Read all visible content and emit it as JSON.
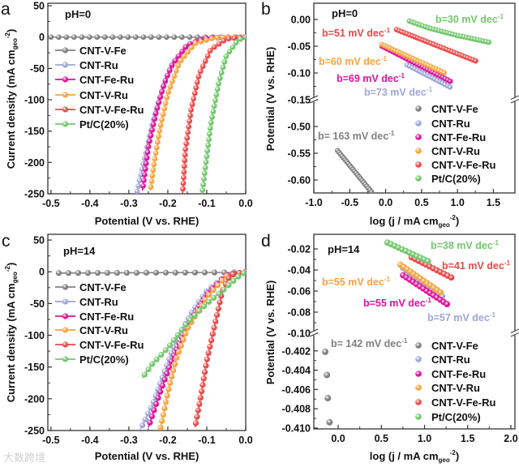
{
  "watermark": "大数跨境",
  "colors": {
    "CNT-V-Fe": "#808080",
    "CNT-Ru": "#9ea6d8",
    "CNT-Fe-Ru": "#e01398",
    "CNT-V-Ru": "#f9a33d",
    "CNT-V-Fe-Ru": "#ec4848",
    "Pt/C(20%)": "#72c76c"
  },
  "chart_data": [
    {
      "panel": "a",
      "type": "line",
      "title": "pH=0",
      "xlabel": {
        "main": "Potential  (V vs. RHE)"
      },
      "ylabel": {
        "main": "Current density (mA cm",
        "sub": "geo",
        "sup": "-2",
        "end": ")"
      },
      "xlim": [
        -0.508,
        0
      ],
      "ylim_segments": [
        [
          -250,
          54
        ]
      ],
      "xticks": [
        -0.5,
        -0.4,
        -0.3,
        -0.2,
        -0.1,
        0
      ],
      "xtick_labels": [
        "-0.5",
        "-0.4",
        "-0.3",
        "-0.2",
        "-0.1",
        "0.0"
      ],
      "yticks": [
        50,
        0,
        -50,
        -100,
        -150,
        -200,
        -250
      ],
      "ytick_labels": [
        "50",
        "0",
        "-50",
        "-100",
        "-150",
        "-200",
        "-250"
      ],
      "legend": "left",
      "series": [
        {
          "name": "CNT-V-Fe",
          "points": [
            [
              -0.5,
              0
            ],
            [
              0,
              0
            ]
          ]
        },
        {
          "name": "CNT-Ru",
          "points": [
            [
              0,
              0
            ],
            [
              -0.1,
              -2
            ],
            [
              -0.15,
              -15
            ],
            [
              -0.18,
              -35
            ],
            [
              -0.2,
              -60
            ],
            [
              -0.22,
              -95
            ],
            [
              -0.24,
              -140
            ],
            [
              -0.26,
              -195
            ],
            [
              -0.28,
              -250
            ]
          ]
        },
        {
          "name": "CNT-Fe-Ru",
          "points": [
            [
              0,
              0
            ],
            [
              -0.1,
              -1
            ],
            [
              -0.15,
              -12
            ],
            [
              -0.19,
              -45
            ],
            [
              -0.21,
              -75
            ],
            [
              -0.23,
              -120
            ],
            [
              -0.25,
              -175
            ],
            [
              -0.265,
              -245
            ]
          ]
        },
        {
          "name": "CNT-V-Ru",
          "points": [
            [
              0,
              0
            ],
            [
              -0.08,
              -1
            ],
            [
              -0.13,
              -10
            ],
            [
              -0.17,
              -40
            ],
            [
              -0.2,
              -90
            ],
            [
              -0.22,
              -145
            ],
            [
              -0.235,
              -200
            ],
            [
              -0.245,
              -245
            ]
          ]
        },
        {
          "name": "CNT-V-Fe-Ru",
          "points": [
            [
              0,
              0
            ],
            [
              -0.05,
              -3
            ],
            [
              -0.09,
              -20
            ],
            [
              -0.12,
              -60
            ],
            [
              -0.14,
              -115
            ],
            [
              -0.155,
              -180
            ],
            [
              -0.162,
              -250
            ]
          ]
        },
        {
          "name": "Pt/C(20%)",
          "points": [
            [
              0,
              0
            ],
            [
              -0.02,
              -5
            ],
            [
              -0.05,
              -30
            ],
            [
              -0.07,
              -75
            ],
            [
              -0.09,
              -140
            ],
            [
              -0.1,
              -190
            ],
            [
              -0.112,
              -250
            ]
          ]
        }
      ],
      "annotations": []
    },
    {
      "panel": "b",
      "type": "scatter",
      "title": "pH=0",
      "xlabel": {
        "main": "log (j / mA cm",
        "sub": "geo",
        "sup": "-2",
        "end": ")"
      },
      "ylabel": {
        "main": "Potential  (V vs. RHE)"
      },
      "xlim": [
        -1.0,
        1.8
      ],
      "ylim_segments": [
        [
          -0.15,
          0.0303
        ],
        [
          -0.6242,
          -0.45
        ]
      ],
      "xticks": [
        -1.0,
        -0.5,
        0,
        0.5,
        1.0,
        1.5
      ],
      "xtick_labels": [
        "-1.0",
        "-0.5",
        "0.0",
        "0.5",
        "1.0",
        "1.5"
      ],
      "yticks": [
        0,
        -0.05,
        -0.1,
        -0.15,
        -0.5,
        -0.55,
        -0.6
      ],
      "ytick_labels": [
        "0.00",
        "-0.05",
        "-0.10",
        "-0.15",
        "-0.50",
        "-0.55",
        "-0.60"
      ],
      "legend": "right",
      "series": [
        {
          "name": "CNT-V-Fe",
          "points": [
            [
              -0.67,
              -0.545
            ],
            [
              -0.18,
              -0.625
            ]
          ]
        },
        {
          "name": "CNT-Ru",
          "points": [
            [
              0.3,
              -0.085
            ],
            [
              0.92,
              -0.128
            ]
          ]
        },
        {
          "name": "CNT-Fe-Ru",
          "points": [
            [
              -0.05,
              -0.05
            ],
            [
              0.92,
              -0.117
            ]
          ]
        },
        {
          "name": "CNT-V-Ru",
          "points": [
            [
              -0.05,
              -0.047
            ],
            [
              0.82,
              -0.1
            ]
          ]
        },
        {
          "name": "CNT-V-Fe-Ru",
          "points": [
            [
              0.15,
              -0.019
            ],
            [
              1.28,
              -0.079
            ]
          ]
        },
        {
          "name": "Pt/C(20%)",
          "points": [
            [
              0.33,
              -0.003
            ],
            [
              0.6,
              -0.016
            ],
            [
              1.0,
              -0.03
            ],
            [
              1.45,
              -0.043
            ]
          ]
        }
      ],
      "annotations": [
        {
          "series": "Pt/C(20%)",
          "text": "b=30 mV dec",
          "sup": "-1"
        },
        {
          "series": "CNT-V-Fe-Ru",
          "text": "b=51 mV dec",
          "sup": "-1"
        },
        {
          "series": "CNT-V-Ru",
          "text": "b=60 mV dec",
          "sup": "-1"
        },
        {
          "series": "CNT-Fe-Ru",
          "text": "b=69 mV dec",
          "sup": "-1"
        },
        {
          "series": "CNT-Ru",
          "text": "b=73 mV dec",
          "sup": "-1"
        },
        {
          "series": "CNT-V-Fe",
          "text": "b= 163 mV dec",
          "sup": "-1"
        }
      ]
    },
    {
      "panel": "c",
      "type": "line",
      "title": "pH=14",
      "xlabel": {
        "main": "Potential  (V vs. RHE)"
      },
      "ylabel": {
        "main": "Current density (mA cm",
        "sub": "geo",
        "sup": "-2",
        "end": ")"
      },
      "xlim": [
        -0.508,
        0
      ],
      "ylim_segments": [
        [
          -250,
          59
        ]
      ],
      "xticks": [
        -0.5,
        -0.4,
        -0.3,
        -0.2,
        -0.1,
        0
      ],
      "xtick_labels": [
        "-0.5",
        "-0.4",
        "-0.3",
        "-0.2",
        "-0.1",
        "0.0"
      ],
      "yticks": [
        50,
        0,
        -50,
        -100,
        -150,
        -200,
        -250
      ],
      "ytick_labels": [
        "50",
        "0",
        "-50",
        "-100",
        "-150",
        "-200",
        "-250"
      ],
      "legend": "left",
      "series": [
        {
          "name": "CNT-V-Fe",
          "points": [
            [
              -0.48,
              -2
            ],
            [
              -0.02,
              -1
            ],
            [
              -0.015,
              0
            ]
          ]
        },
        {
          "name": "CNT-Ru",
          "points": [
            [
              0,
              0
            ],
            [
              -0.05,
              -5
            ],
            [
              -0.1,
              -30
            ],
            [
              -0.14,
              -65
            ],
            [
              -0.18,
              -110
            ],
            [
              -0.21,
              -160
            ],
            [
              -0.24,
              -210
            ],
            [
              -0.27,
              -248
            ]
          ]
        },
        {
          "name": "CNT-Fe-Ru",
          "points": [
            [
              0,
              0
            ],
            [
              -0.05,
              -5
            ],
            [
              -0.1,
              -35
            ],
            [
              -0.15,
              -85
            ],
            [
              -0.19,
              -140
            ],
            [
              -0.22,
              -190
            ],
            [
              -0.25,
              -245
            ]
          ]
        },
        {
          "name": "CNT-V-Ru",
          "points": [
            [
              0,
              0
            ],
            [
              -0.05,
              -7
            ],
            [
              -0.1,
              -40
            ],
            [
              -0.15,
              -90
            ],
            [
              -0.18,
              -140
            ],
            [
              -0.2,
              -190
            ],
            [
              -0.22,
              -250
            ]
          ]
        },
        {
          "name": "CNT-V-Fe-Ru",
          "points": [
            [
              0,
              0
            ],
            [
              -0.04,
              -5
            ],
            [
              -0.06,
              -30
            ],
            [
              -0.08,
              -85
            ],
            [
              -0.1,
              -140
            ],
            [
              -0.115,
              -195
            ],
            [
              -0.13,
              -245
            ]
          ]
        },
        {
          "name": "Pt/C(20%)",
          "points": [
            [
              -0.005,
              -2
            ],
            [
              -0.02,
              -8
            ],
            [
              -0.06,
              -30
            ],
            [
              -0.1,
              -50
            ],
            [
              -0.15,
              -80
            ],
            [
              -0.2,
              -120
            ],
            [
              -0.24,
              -145
            ],
            [
              -0.265,
              -167
            ]
          ]
        }
      ],
      "annotations": []
    },
    {
      "panel": "d",
      "type": "scatter",
      "title": "pH=14",
      "xlabel": {
        "main": "log (j / mA cm",
        "sub": "geo",
        "sup": "-2",
        "end": ")"
      },
      "ylabel": {
        "main": "Potential  (V vs. RHE)"
      },
      "xlim": [
        -0.282,
        2.047
      ],
      "ylim_segments": [
        [
          -0.1,
          -0.00615
        ],
        [
          -0.41009,
          -0.40017
        ]
      ],
      "xticks": [
        0,
        0.5,
        1.0,
        1.5,
        2.0
      ],
      "xtick_labels": [
        "0.0",
        "0.5",
        "1.0",
        "1.5",
        "2.0"
      ],
      "yticks": [
        -0.02,
        -0.04,
        -0.06,
        -0.08,
        -0.1,
        -0.402,
        -0.404,
        -0.406,
        -0.408,
        -0.41
      ],
      "ytick_labels": [
        "-0.02",
        "-0.04",
        "-0.06",
        "-0.08",
        "-0.10",
        "-0.402",
        "-0.404",
        "-0.406",
        "-0.408",
        "-0.410"
      ],
      "legend": "right",
      "series": [
        {
          "name": "CNT-V-Fe",
          "discrete": true,
          "points": [
            [
              -0.15,
              -0.4021
            ],
            [
              -0.13,
              -0.4045
            ],
            [
              -0.12,
              -0.4069
            ],
            [
              -0.1,
              -0.4094
            ]
          ]
        },
        {
          "name": "CNT-Ru",
          "points": [
            [
              0.75,
              -0.038
            ],
            [
              1.22,
              -0.066
            ]
          ]
        },
        {
          "name": "CNT-Fe-Ru",
          "points": [
            [
              0.75,
              -0.045
            ],
            [
              1.27,
              -0.073
            ]
          ]
        },
        {
          "name": "CNT-V-Ru",
          "points": [
            [
              0.72,
              -0.035
            ],
            [
              1.2,
              -0.062
            ]
          ]
        },
        {
          "name": "CNT-V-Fe-Ru",
          "points": [
            [
              0.85,
              -0.028
            ],
            [
              1.33,
              -0.048
            ]
          ]
        },
        {
          "name": "Pt/C(20%)",
          "points": [
            [
              0.57,
              -0.014
            ],
            [
              1.05,
              -0.032
            ]
          ]
        }
      ],
      "annotations": [
        {
          "series": "Pt/C(20%)",
          "text": "b=38 mV dec",
          "sup": "-1"
        },
        {
          "series": "CNT-V-Fe-Ru",
          "text": "b=41 mV dec",
          "sup": "-1"
        },
        {
          "series": "CNT-V-Ru",
          "text": "b=55 mV dec",
          "sup": "-1"
        },
        {
          "series": "CNT-Fe-Ru",
          "text": "b=55 mV dec",
          "sup": "-1"
        },
        {
          "series": "CNT-Ru",
          "text": "b=57 mV dec",
          "sup": "-1"
        },
        {
          "series": "CNT-V-Fe",
          "text": "b= 142 mV dec",
          "sup": "-1"
        }
      ]
    }
  ]
}
